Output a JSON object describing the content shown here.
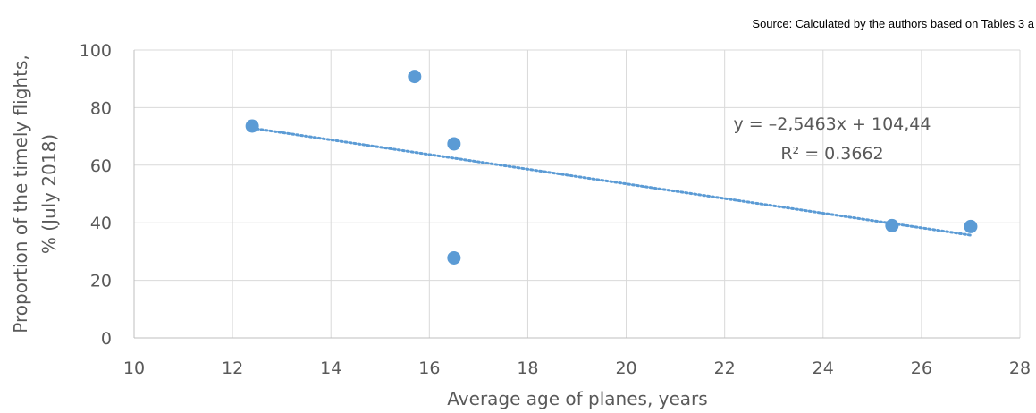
{
  "source_note": "Source: Calculated by the authors based on Tables 3 a",
  "chart_data": {
    "type": "scatter",
    "title": "",
    "xlabel": "Average age of planes, years",
    "ylabel_lines": [
      "Proportion of the timely flights,",
      "% (July 2018)"
    ],
    "xlim": [
      10,
      28
    ],
    "ylim": [
      0,
      100
    ],
    "x_ticks": [
      10,
      12,
      14,
      16,
      18,
      20,
      22,
      24,
      26,
      28
    ],
    "y_ticks": [
      0,
      20,
      40,
      60,
      80,
      100
    ],
    "grid": true,
    "points": [
      {
        "x": 12.4,
        "y": 73.6
      },
      {
        "x": 15.7,
        "y": 90.8
      },
      {
        "x": 16.5,
        "y": 67.4
      },
      {
        "x": 16.5,
        "y": 27.8
      },
      {
        "x": 25.4,
        "y": 39.0
      },
      {
        "x": 27.0,
        "y": 38.7
      }
    ],
    "trendline": {
      "type": "linear",
      "slope": -2.5463,
      "intercept": 104.44,
      "x_range": [
        12.4,
        27.0
      ],
      "equation_label": "y = –2,5463x + 104,44",
      "r2_label": "R² = 0.3662"
    },
    "colors": {
      "point": "#5b9bd5",
      "trendline": "#5b9bd5",
      "grid": "#d9d9d9",
      "axis": "#bfbfbf",
      "text": "#595959"
    }
  }
}
